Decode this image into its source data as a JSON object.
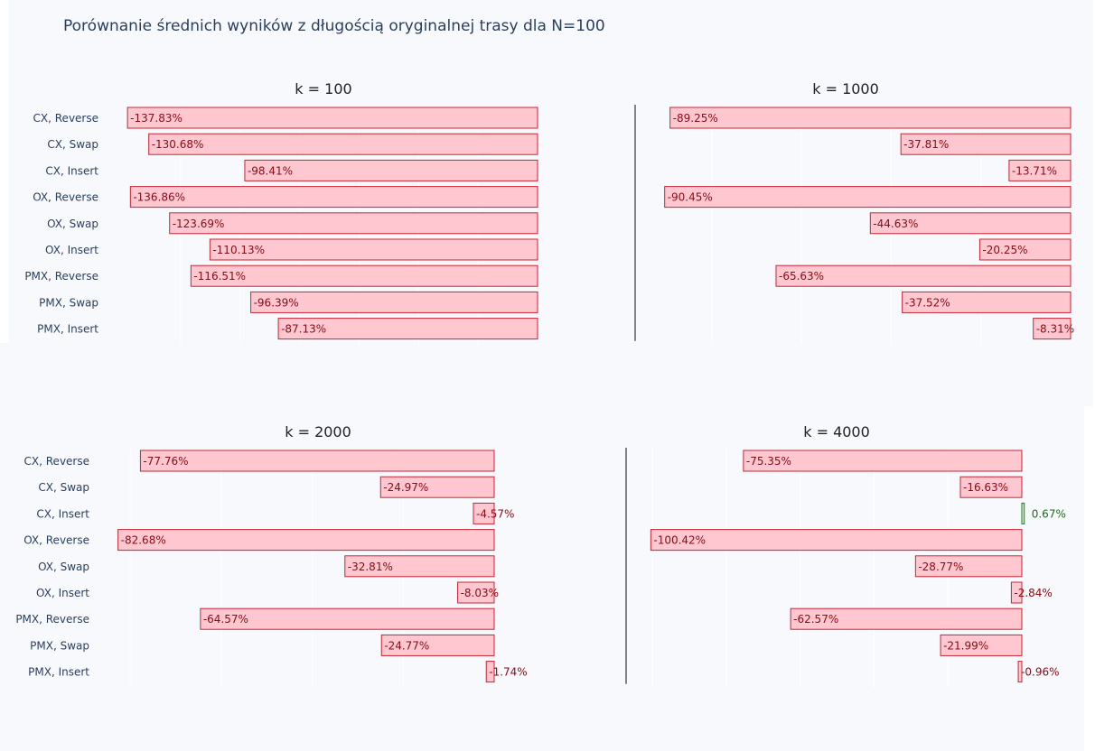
{
  "title": "Porównanie średnich wyników z długością oryginalnej trasy dla N=100",
  "chart_data": [
    {
      "type": "bar",
      "orientation": "horizontal",
      "title": "k = 100",
      "categories": [
        "CX, Reverse",
        "CX, Swap",
        "CX, Insert",
        "OX, Reverse",
        "OX, Swap",
        "OX, Insert",
        "PMX, Reverse",
        "PMX, Swap",
        "PMX, Insert"
      ],
      "values": [
        -137.83,
        -130.68,
        -98.41,
        -136.86,
        -123.69,
        -110.13,
        -116.51,
        -96.39,
        -87.13
      ],
      "labels": [
        "-137.83%",
        "-130.68%",
        "-98.41%",
        "-136.86%",
        "-123.69%",
        "-110.13%",
        "-116.51%",
        "-96.39%",
        "-87.13%"
      ],
      "xlim": [
        -140,
        0
      ]
    },
    {
      "type": "bar",
      "orientation": "horizontal",
      "title": "k = 1000",
      "categories": [
        "CX, Reverse",
        "CX, Swap",
        "CX, Insert",
        "OX, Reverse",
        "OX, Swap",
        "OX, Insert",
        "PMX, Reverse",
        "PMX, Swap",
        "PMX, Insert"
      ],
      "values": [
        -89.25,
        -37.81,
        -13.71,
        -90.45,
        -44.63,
        -20.25,
        -65.63,
        -37.52,
        -8.31
      ],
      "labels": [
        "-89.25%",
        "-37.81%",
        "-13.71%",
        "-90.45%",
        "-44.63%",
        "-20.25%",
        "-65.63%",
        "-37.52%",
        "-8.31%"
      ],
      "xlim": [
        -92,
        0
      ]
    },
    {
      "type": "bar",
      "orientation": "horizontal",
      "title": "k = 2000",
      "categories": [
        "CX, Reverse",
        "CX, Swap",
        "CX, Insert",
        "OX, Reverse",
        "OX, Swap",
        "OX, Insert",
        "PMX, Reverse",
        "PMX, Swap",
        "PMX, Insert"
      ],
      "values": [
        -77.76,
        -24.97,
        -4.57,
        -82.68,
        -32.81,
        -8.03,
        -64.57,
        -24.77,
        -1.74
      ],
      "labels": [
        "-77.76%",
        "-24.97%",
        "-4.57%",
        "-82.68%",
        "-32.81%",
        "-8.03%",
        "-64.57%",
        "-24.77%",
        "-1.74%"
      ],
      "xlim": [
        -84,
        0
      ]
    },
    {
      "type": "bar",
      "orientation": "horizontal",
      "title": "k = 4000",
      "categories": [
        "CX, Reverse",
        "CX, Swap",
        "CX, Insert",
        "OX, Reverse",
        "OX, Swap",
        "OX, Insert",
        "PMX, Reverse",
        "PMX, Swap",
        "PMX, Insert"
      ],
      "values": [
        -75.35,
        -16.63,
        0.67,
        -100.42,
        -28.77,
        -2.84,
        -62.57,
        -21.99,
        -0.96
      ],
      "labels": [
        "-75.35%",
        "-16.63%",
        "0.67%",
        "-100.42%",
        "-28.77%",
        "-2.84%",
        "-62.57%",
        "-21.99%",
        "-0.96%"
      ],
      "xlim": [
        -101,
        0
      ]
    }
  ],
  "colors": {
    "negative_fill": "#ffc8d0",
    "negative_stroke": "#cc2233",
    "negative_text": "#8b0a14",
    "positive_fill": "#c8f0c8",
    "positive_stroke": "#1e7d1e",
    "positive_text": "#1e6b1e"
  }
}
